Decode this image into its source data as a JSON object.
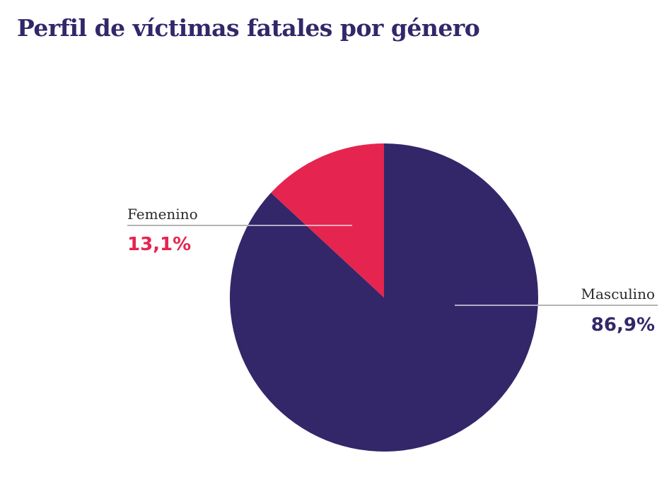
{
  "chart_data": {
    "type": "pie",
    "title": "Perfil de víctimas fatales por género",
    "slices": [
      {
        "label": "Masculino",
        "value": 86.9,
        "value_label": "86,9%",
        "color": "#33276a",
        "label_side": "right"
      },
      {
        "label": "Femenino",
        "value": 13.1,
        "value_label": "13,1%",
        "color": "#e5254f",
        "label_side": "left"
      }
    ],
    "start_angle": "12 o'clock, clockwise",
    "legend": "none"
  },
  "colors": {
    "title": "#33276a",
    "masculino": "#33276a",
    "femenino": "#e5254f",
    "leader_line": "#888888",
    "background": "#ffffff"
  }
}
